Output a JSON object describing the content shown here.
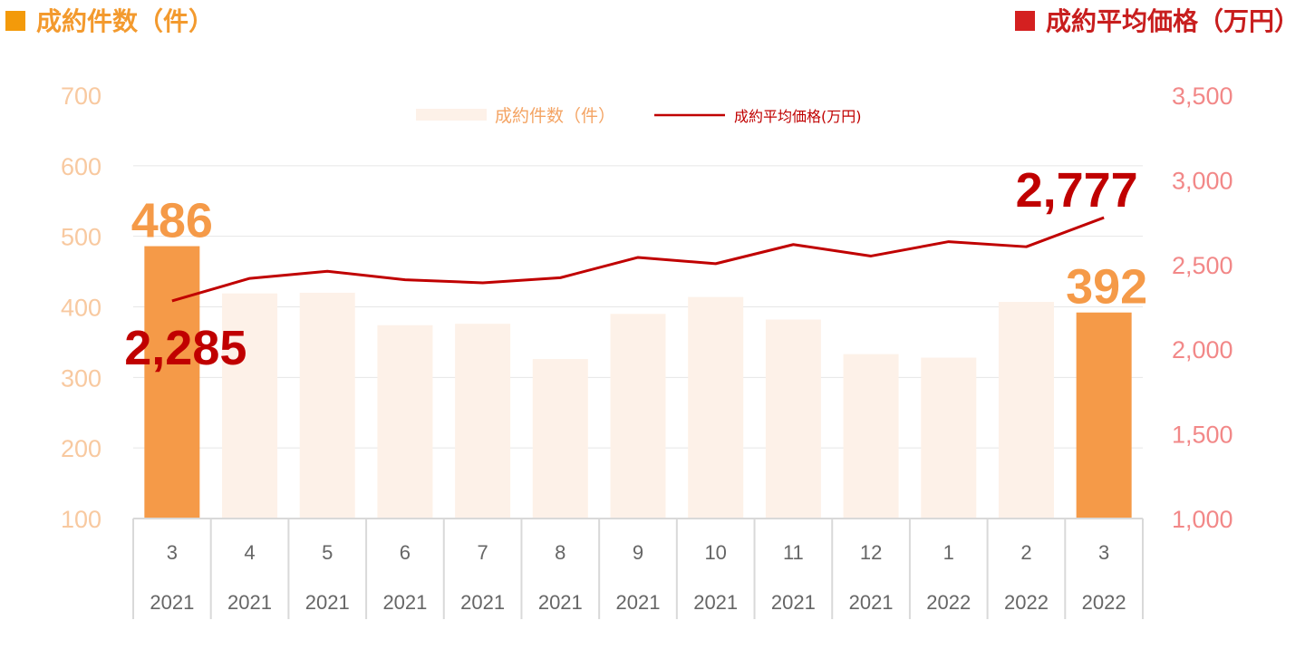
{
  "header": {
    "left_title": "成約件数（件）",
    "right_title": "成約平均価格（万円）"
  },
  "colors": {
    "bar_highlight": "#f59a48",
    "bar_normal": "#fdf1e8",
    "line": "#c00000",
    "left_axis_text": "#f8c9a0",
    "right_axis_text": "#f28888",
    "label_bar": "#f59a48",
    "label_line": "#c00000"
  },
  "chart_data": {
    "type": "bar",
    "categories": [
      {
        "month": "3",
        "year": "2021"
      },
      {
        "month": "4",
        "year": "2021"
      },
      {
        "month": "5",
        "year": "2021"
      },
      {
        "month": "6",
        "year": "2021"
      },
      {
        "month": "7",
        "year": "2021"
      },
      {
        "month": "8",
        "year": "2021"
      },
      {
        "month": "9",
        "year": "2021"
      },
      {
        "month": "10",
        "year": "2021"
      },
      {
        "month": "11",
        "year": "2021"
      },
      {
        "month": "12",
        "year": "2021"
      },
      {
        "month": "1",
        "year": "2022"
      },
      {
        "month": "2",
        "year": "2022"
      },
      {
        "month": "3",
        "year": "2022"
      }
    ],
    "series": [
      {
        "name": "成約件数（件）",
        "type": "bar",
        "axis": "left",
        "values": [
          486,
          419,
          420,
          374,
          376,
          326,
          390,
          414,
          382,
          333,
          328,
          407,
          392
        ],
        "highlighted_indices": [
          0,
          12
        ]
      },
      {
        "name": "成約平均価格(万円)",
        "type": "line",
        "axis": "right",
        "values": [
          2285,
          2418,
          2460,
          2410,
          2392,
          2422,
          2542,
          2505,
          2618,
          2550,
          2635,
          2605,
          2777
        ]
      }
    ],
    "left_axis": {
      "ylim": [
        100,
        700
      ],
      "ticks": [
        "100",
        "200",
        "300",
        "400",
        "500",
        "600",
        "700"
      ]
    },
    "right_axis": {
      "ylim": [
        1000,
        3500
      ],
      "ticks": [
        "1,000",
        "1,500",
        "2,000",
        "2,500",
        "3,000",
        "3,500"
      ]
    },
    "data_labels": [
      {
        "series": 0,
        "index": 0,
        "text": "486"
      },
      {
        "series": 0,
        "index": 12,
        "text": "392"
      },
      {
        "series": 1,
        "index": 0,
        "text": "2,285"
      },
      {
        "series": 1,
        "index": 12,
        "text": "2,777"
      }
    ],
    "legend": {
      "position": "top-center"
    },
    "grid": true
  }
}
